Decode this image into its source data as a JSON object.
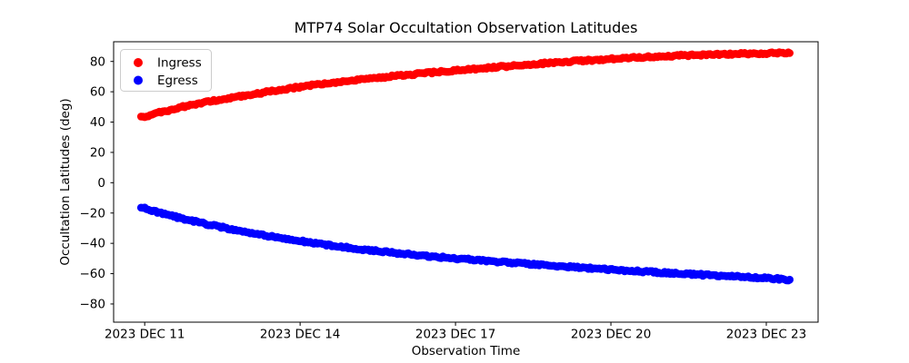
{
  "chart_data": {
    "type": "scatter",
    "title": "MTP74 Solar Occultation Observation Latitudes",
    "xlabel": "Observation Time",
    "ylabel": "Occultation Latitudes (deg)",
    "x_unit": "day of 2023 DEC",
    "xlim": [
      10.4,
      24.0
    ],
    "ylim": [
      -92,
      93
    ],
    "xticks": [
      {
        "value": 11,
        "label": "2023 DEC 11"
      },
      {
        "value": 14,
        "label": "2023 DEC 14"
      },
      {
        "value": 17,
        "label": "2023 DEC 17"
      },
      {
        "value": 20,
        "label": "2023 DEC 20"
      },
      {
        "value": 23,
        "label": "2023 DEC 23"
      }
    ],
    "yticks": [
      80,
      60,
      40,
      20,
      0,
      -20,
      -40,
      -60,
      -80
    ],
    "grid": false,
    "legend": {
      "position": "upper left",
      "border_color": "#cccccc",
      "background": "#ffffff"
    },
    "series": [
      {
        "name": "Ingress",
        "color": "#ff0000",
        "points": [
          [
            10.93,
            43.0
          ],
          [
            11.25,
            46.0
          ],
          [
            11.75,
            50.2
          ],
          [
            12.25,
            53.5
          ],
          [
            12.75,
            56.5
          ],
          [
            13.25,
            59.3
          ],
          [
            13.75,
            62.0
          ],
          [
            14.25,
            64.4
          ],
          [
            14.75,
            66.4
          ],
          [
            15.25,
            68.3
          ],
          [
            15.75,
            70.1
          ],
          [
            16.25,
            71.8
          ],
          [
            16.75,
            73.3
          ],
          [
            17.25,
            74.8
          ],
          [
            17.75,
            76.2
          ],
          [
            18.25,
            77.5
          ],
          [
            18.75,
            78.8
          ],
          [
            19.25,
            80.0
          ],
          [
            19.75,
            81.1
          ],
          [
            20.25,
            82.1
          ],
          [
            20.75,
            83.0
          ],
          [
            21.25,
            83.8
          ],
          [
            21.75,
            84.4
          ],
          [
            22.25,
            84.9
          ],
          [
            22.75,
            85.2
          ],
          [
            23.1,
            85.4
          ],
          [
            23.45,
            85.5
          ]
        ]
      },
      {
        "name": "Egress",
        "color": "#0000ff",
        "points": [
          [
            10.93,
            -16.3
          ],
          [
            11.25,
            -19.5
          ],
          [
            11.75,
            -23.8
          ],
          [
            12.25,
            -27.6
          ],
          [
            12.75,
            -31.1
          ],
          [
            13.25,
            -34.2
          ],
          [
            13.75,
            -37.1
          ],
          [
            14.25,
            -39.7
          ],
          [
            14.75,
            -42.0
          ],
          [
            15.25,
            -44.1
          ],
          [
            15.75,
            -46.0
          ],
          [
            16.25,
            -47.7
          ],
          [
            16.75,
            -49.2
          ],
          [
            17.25,
            -50.6
          ],
          [
            17.75,
            -51.9
          ],
          [
            18.25,
            -53.2
          ],
          [
            18.75,
            -54.4
          ],
          [
            19.25,
            -55.6
          ],
          [
            19.75,
            -56.7
          ],
          [
            20.25,
            -57.8
          ],
          [
            20.75,
            -58.8
          ],
          [
            21.25,
            -59.8
          ],
          [
            21.75,
            -60.7
          ],
          [
            22.25,
            -61.6
          ],
          [
            22.75,
            -62.4
          ],
          [
            23.1,
            -63.2
          ],
          [
            23.45,
            -64.0
          ]
        ]
      }
    ]
  }
}
